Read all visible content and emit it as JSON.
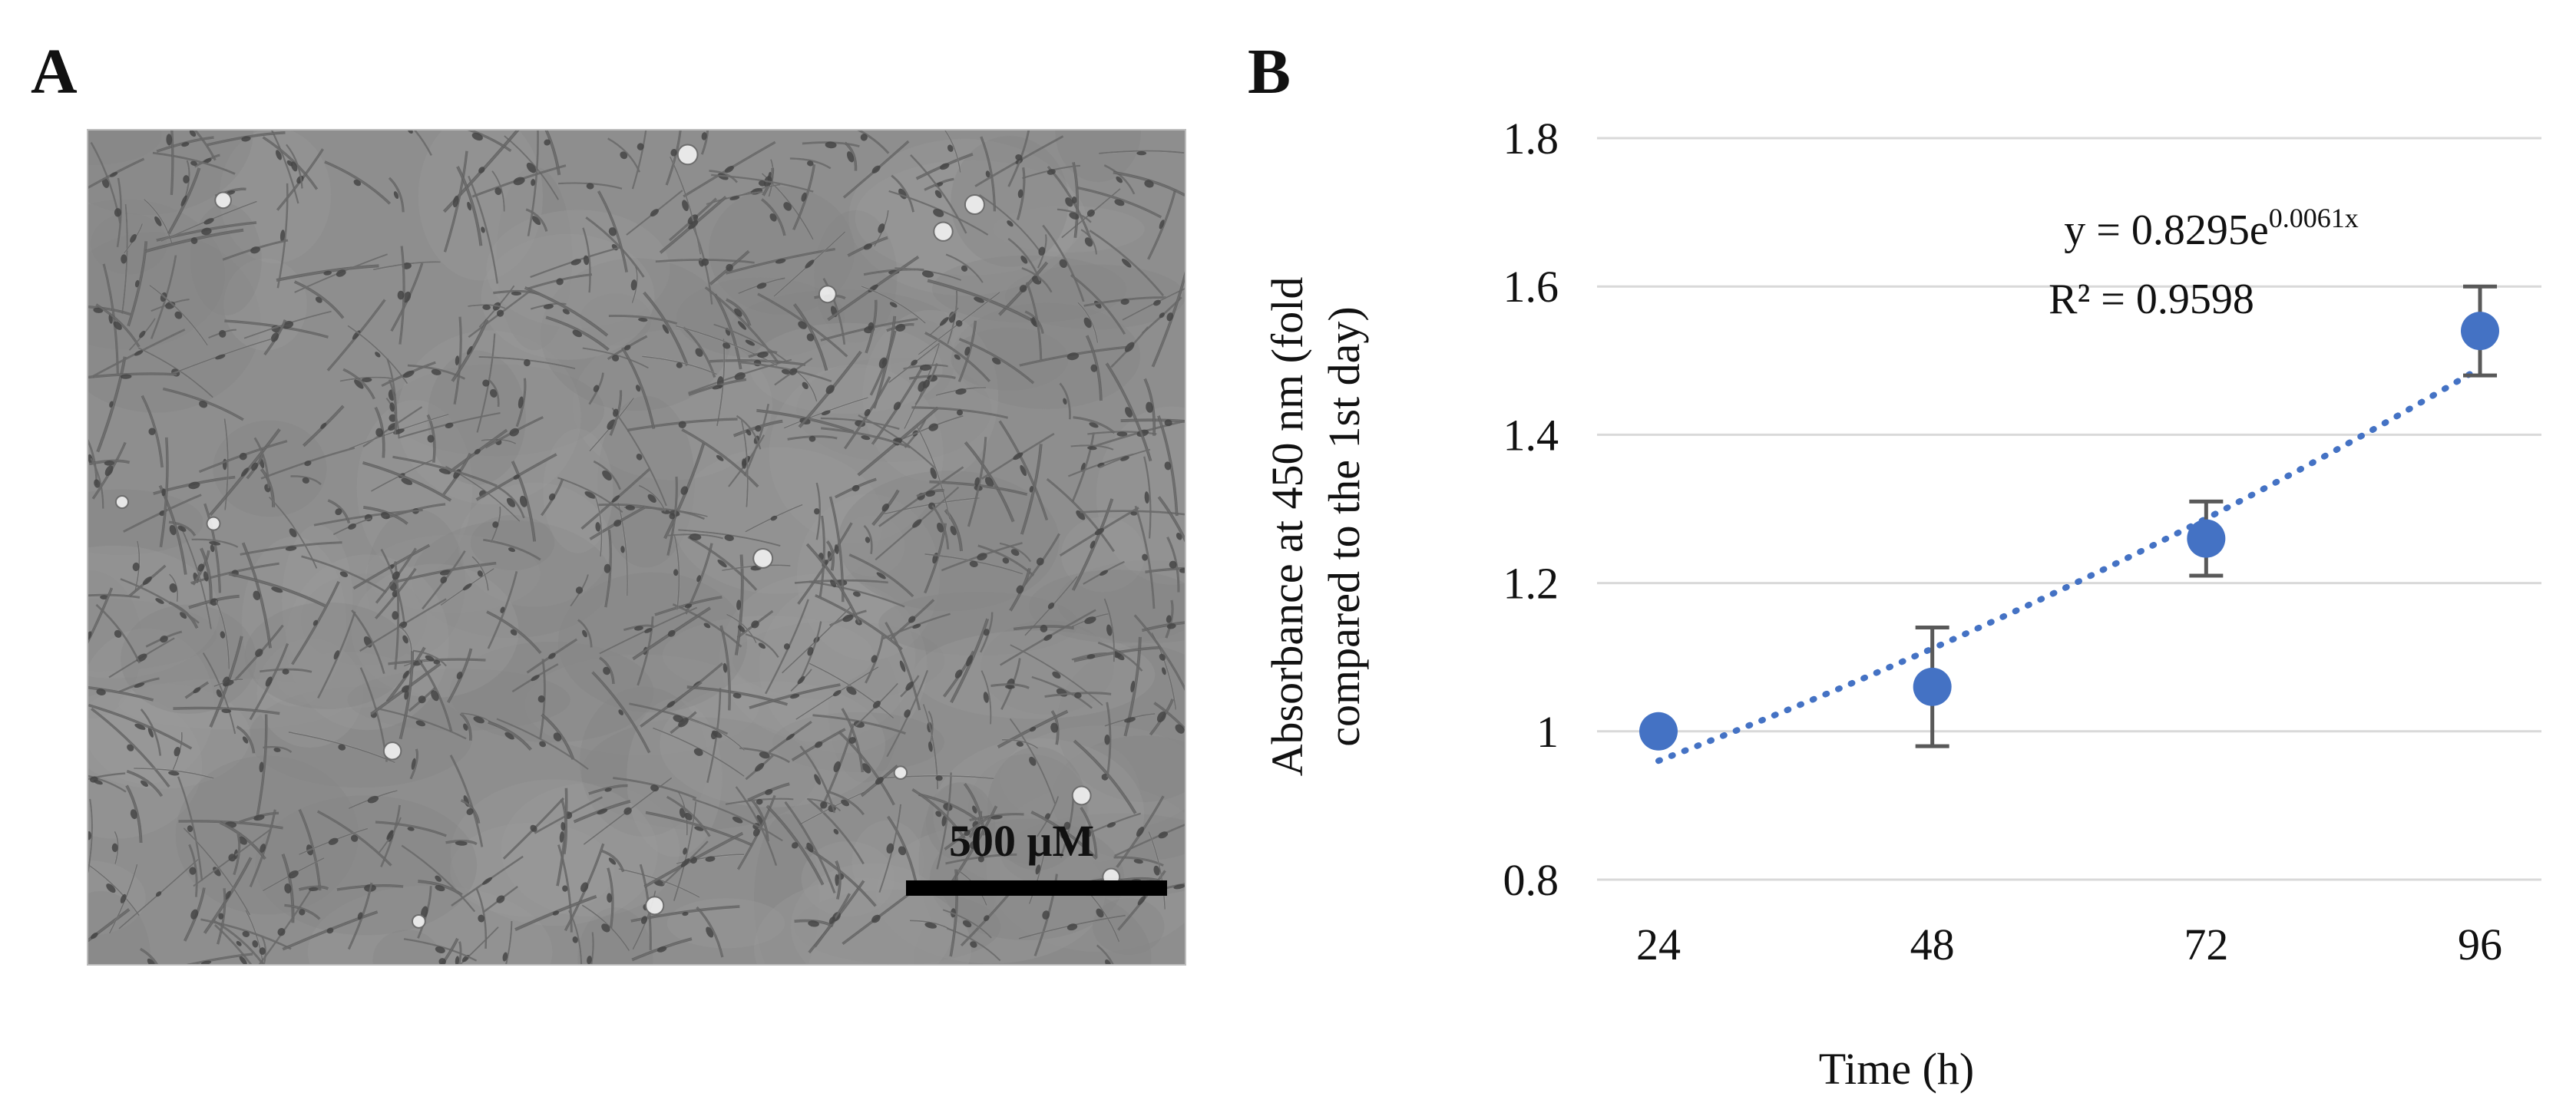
{
  "panels": {
    "a_label": "A",
    "b_label": "B"
  },
  "micrograph": {
    "scale_label": "500 μM",
    "background_color": "#8e8e8e",
    "cell_color": "#5b5b5b",
    "halo_color": "#d9d9d9"
  },
  "chart_data": {
    "type": "scatter",
    "x": [
      24,
      48,
      72,
      96
    ],
    "y": [
      1.0,
      1.06,
      1.26,
      1.54
    ],
    "error": [
      0.0,
      0.08,
      0.05,
      0.06
    ],
    "xticks": [
      "24",
      "48",
      "72",
      "96"
    ],
    "yticks": [
      "0.8",
      "1",
      "1.2",
      "1.4",
      "1.6",
      "1.8"
    ],
    "ylim": [
      0.8,
      1.8
    ],
    "xlabel": "Time (h)",
    "ylabel_line1": "Absorbance at 450 nm (fold",
    "ylabel_line2": "compared to the 1st day)",
    "trendline": {
      "type": "exponential",
      "a": 0.8295,
      "b": 0.0061,
      "equation_prefix": "y = 0.8295e",
      "equation_exponent": "0.0061x",
      "r2_label": "R² = 0.9598"
    },
    "grid": true,
    "marker_color": "#4472c4",
    "trend_color": "#4472c4",
    "error_color": "#595959"
  }
}
